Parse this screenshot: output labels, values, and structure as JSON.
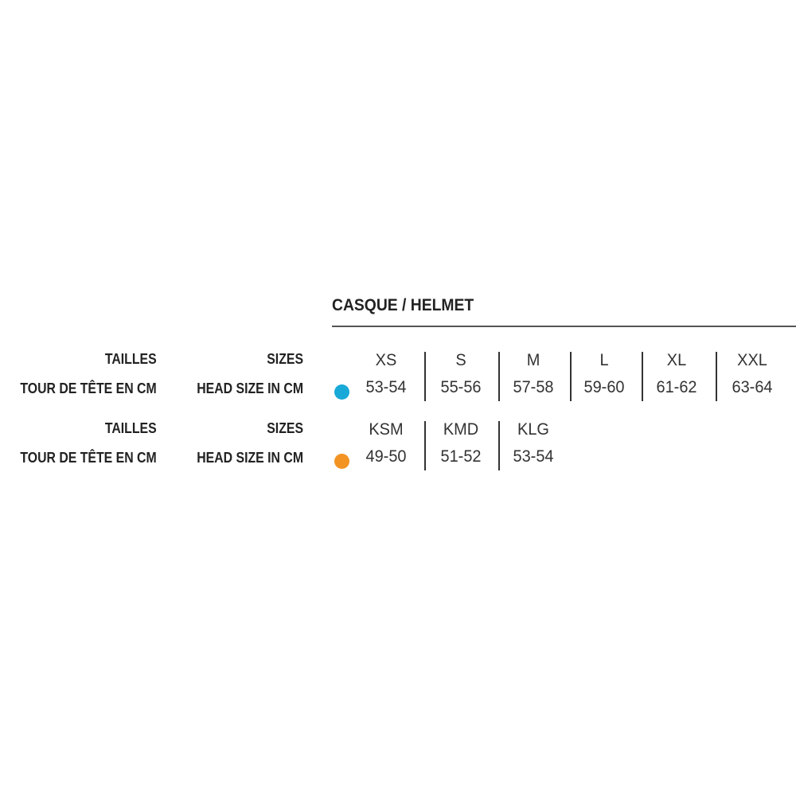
{
  "title": "CASQUE / HELMET",
  "colors": {
    "adult_dot": "#18a9d8",
    "kids_dot": "#f39323"
  },
  "tables": [
    {
      "label_fr": "TAILLES",
      "label_en": "SIZES",
      "measure_fr": "TOUR DE TÊTE EN CM",
      "measure_en": "HEAD SIZE IN CM",
      "dot": "cyan-dot",
      "sizes": [
        "XS",
        "S",
        "M",
        "L",
        "XL",
        "XXL"
      ],
      "head_cm": [
        "53-54",
        "55-56",
        "57-58",
        "59-60",
        "61-62",
        "63-64"
      ]
    },
    {
      "label_fr": "TAILLES",
      "label_en": "SIZES",
      "measure_fr": "TOUR DE TÊTE EN CM",
      "measure_en": "HEAD SIZE IN  CM",
      "dot": "orange-dot",
      "sizes": [
        "KSM",
        "KMD",
        "KLG"
      ],
      "head_cm": [
        "49-50",
        "51-52",
        "53-54"
      ]
    }
  ]
}
